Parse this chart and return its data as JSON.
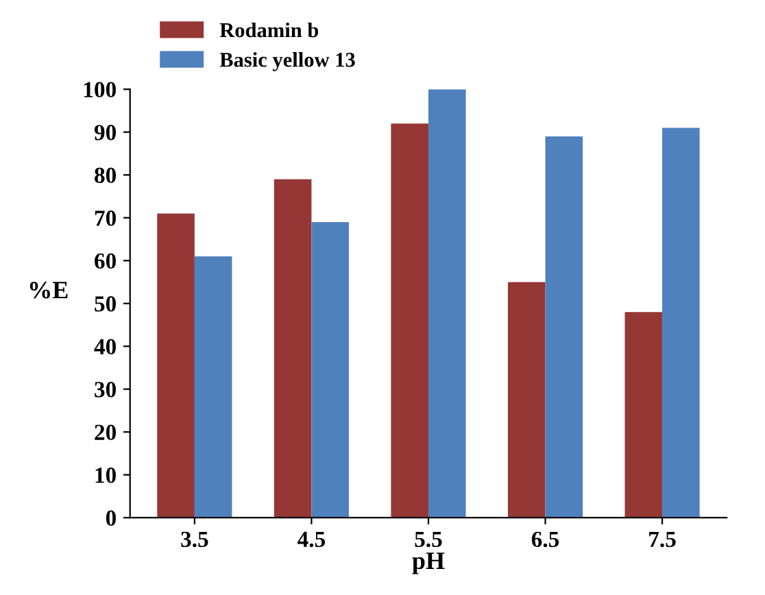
{
  "chart_data": {
    "type": "bar",
    "xlabel": "pH",
    "ylabel": "%E",
    "categories": [
      "3.5",
      "4.5",
      "5.5",
      "6.5",
      "7.5"
    ],
    "series": [
      {
        "name": "Rodamin b",
        "color": "#953735",
        "values": [
          71,
          79,
          92,
          55,
          48
        ]
      },
      {
        "name": "Basic yellow 13",
        "color": "#4f81bd",
        "values": [
          61,
          69,
          100,
          89,
          91
        ]
      }
    ],
    "ylim": [
      0,
      100
    ],
    "yticks": [
      0,
      10,
      20,
      30,
      40,
      50,
      60,
      70,
      80,
      90,
      100
    ],
    "grid": false,
    "legend": "top left"
  }
}
